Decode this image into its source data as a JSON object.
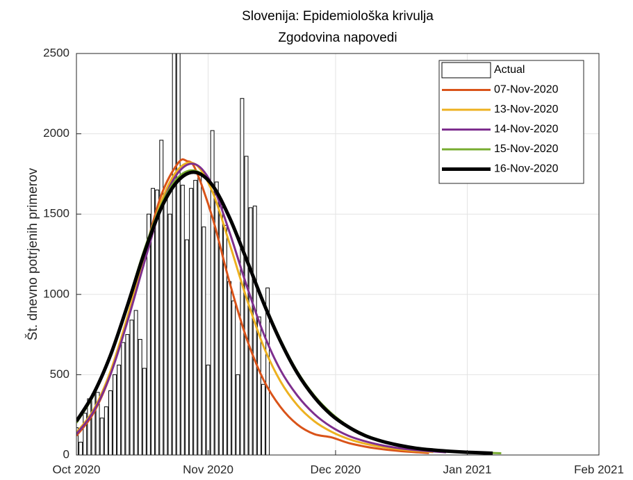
{
  "chart_data": {
    "type": "line",
    "title": [
      "Slovenija: Epidemiološka krivulja",
      "Zgodovina napovedi"
    ],
    "y_label": "Št. dnevno potrjenih primerov",
    "xlim": [
      0,
      123
    ],
    "xticks": [
      {
        "value": 0,
        "label": "Oct 2020"
      },
      {
        "value": 31,
        "label": "Nov 2020"
      },
      {
        "value": 61,
        "label": "Dec 2020"
      },
      {
        "value": 92,
        "label": "Jan 2021"
      },
      {
        "value": 123,
        "label": "Feb 2021"
      }
    ],
    "ylim": [
      0,
      2500
    ],
    "yticks": [
      0,
      500,
      1000,
      1500,
      2000,
      2500
    ],
    "grid": true,
    "legend": "top-right",
    "series": [
      {
        "name": "Actual",
        "type": "bar",
        "color": "#ffffff",
        "x": [
          0,
          1,
          2,
          3,
          4,
          5,
          6,
          7,
          8,
          9,
          10,
          11,
          12,
          13,
          14,
          15,
          16,
          17,
          18,
          19,
          20,
          21,
          22,
          23,
          24,
          25,
          26,
          27,
          28,
          29,
          30,
          31,
          32,
          33,
          34,
          35,
          36,
          37,
          38,
          39,
          40,
          41,
          42,
          43,
          44,
          45
        ],
        "values": [
          170,
          80,
          260,
          350,
          380,
          390,
          230,
          300,
          400,
          500,
          560,
          700,
          750,
          840,
          900,
          720,
          540,
          1500,
          1660,
          1650,
          1960,
          1620,
          1500,
          2600,
          2550,
          1680,
          1340,
          1660,
          1710,
          1760,
          1420,
          560,
          2020,
          1700,
          1560,
          1430,
          1080,
          960,
          500,
          2220,
          1860,
          1540,
          1550,
          860,
          440,
          1040
        ]
      },
      {
        "name": "07-Nov-2020",
        "type": "line",
        "color": "#d95319",
        "width": 3,
        "x": [
          0,
          4,
          8,
          12,
          16,
          20,
          24,
          26,
          28,
          32,
          36,
          40,
          44,
          48,
          52,
          56,
          60,
          64,
          68,
          72,
          76,
          80,
          83
        ],
        "values": [
          120,
          260,
          500,
          850,
          1250,
          1620,
          1820,
          1830,
          1780,
          1480,
          1080,
          730,
          470,
          300,
          190,
          130,
          110,
          75,
          52,
          36,
          25,
          17,
          12
        ]
      },
      {
        "name": "13-Nov-2020",
        "type": "line",
        "color": "#edb120",
        "width": 3,
        "x": [
          0,
          4,
          8,
          12,
          16,
          20,
          24,
          28,
          32,
          36,
          40,
          44,
          48,
          52,
          56,
          60,
          64,
          68,
          72,
          76,
          80,
          84
        ],
        "values": [
          140,
          280,
          520,
          860,
          1240,
          1580,
          1780,
          1810,
          1640,
          1320,
          980,
          680,
          460,
          310,
          210,
          145,
          100,
          70,
          50,
          35,
          25,
          18
        ]
      },
      {
        "name": "14-Nov-2020",
        "type": "line",
        "color": "#7e2f8e",
        "width": 3,
        "x": [
          0,
          4,
          8,
          12,
          16,
          20,
          24,
          28,
          32,
          36,
          40,
          44,
          48,
          52,
          56,
          60,
          64,
          68,
          72,
          76,
          80,
          84,
          87
        ],
        "values": [
          130,
          270,
          500,
          830,
          1200,
          1550,
          1760,
          1810,
          1680,
          1390,
          1060,
          760,
          530,
          370,
          255,
          175,
          120,
          85,
          60,
          42,
          30,
          22,
          17
        ]
      },
      {
        "name": "15-Nov-2020",
        "type": "line",
        "color": "#77ac30",
        "width": 3,
        "x": [
          0,
          4,
          8,
          12,
          16,
          20,
          24,
          28,
          32,
          36,
          40,
          44,
          48,
          52,
          56,
          60,
          64,
          68,
          72,
          76,
          80,
          84,
          88,
          92,
          96,
          100
        ],
        "values": [
          200,
          370,
          620,
          940,
          1280,
          1560,
          1730,
          1770,
          1680,
          1480,
          1230,
          960,
          720,
          520,
          370,
          260,
          180,
          125,
          88,
          62,
          44,
          32,
          24,
          18,
          14,
          11
        ]
      },
      {
        "name": "16-Nov-2020",
        "type": "line",
        "color": "#000000",
        "width": 5,
        "x": [
          0,
          4,
          8,
          12,
          16,
          20,
          24,
          28,
          32,
          36,
          40,
          44,
          48,
          52,
          56,
          60,
          64,
          68,
          72,
          76,
          80,
          84,
          88,
          92,
          96,
          98
        ],
        "values": [
          210,
          380,
          620,
          930,
          1260,
          1540,
          1710,
          1760,
          1680,
          1480,
          1220,
          950,
          710,
          510,
          360,
          250,
          175,
          120,
          85,
          60,
          42,
          31,
          23,
          17,
          13,
          11
        ]
      }
    ]
  }
}
